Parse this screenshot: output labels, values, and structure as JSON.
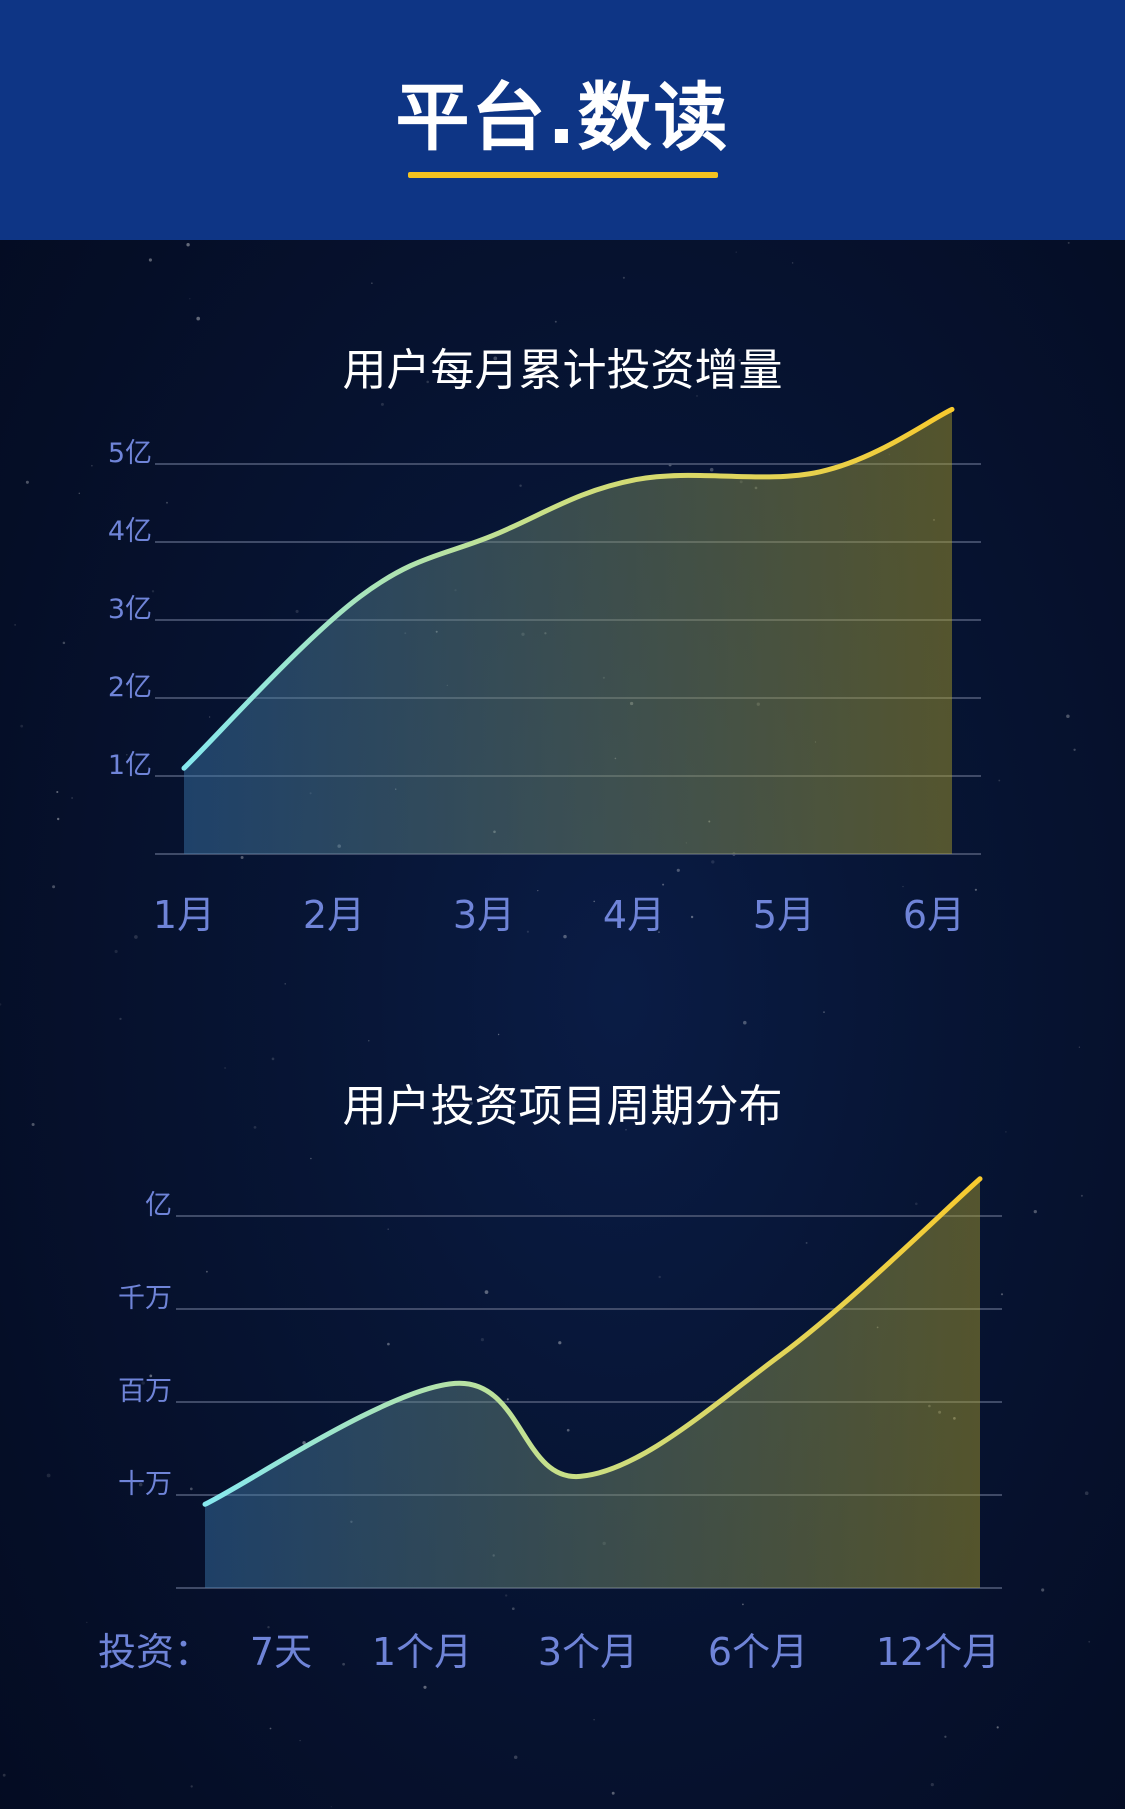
{
  "header": {
    "title": "平台.数读"
  },
  "chart_data": [
    {
      "type": "area",
      "title": "用户每月累计投资增量",
      "categories": [
        "1月",
        "2月",
        "3月",
        "4月",
        "5月",
        "6月"
      ],
      "y_ticks": [
        "1亿",
        "2亿",
        "3亿",
        "4亿",
        "5亿"
      ],
      "ylim": [
        0,
        5
      ],
      "values": [
        1.1,
        3.3,
        4.1,
        4.8,
        4.9,
        5.7
      ],
      "colors": {
        "start": "#86e8ef",
        "end": "#f8ca2e"
      },
      "grid": true
    },
    {
      "type": "area",
      "title": "用户投资项目周期分布",
      "axis_prefix": "投资：",
      "categories": [
        "7天",
        "1个月",
        "3个月",
        "6个月",
        "12个月"
      ],
      "y_ticks": [
        "十万",
        "百万",
        "千万",
        "亿"
      ],
      "values": [
        0.9,
        2.2,
        1.2,
        2.5,
        4.4
      ],
      "colors": {
        "start": "#86e8ef",
        "end": "#f8ca2e"
      },
      "grid": true
    }
  ]
}
